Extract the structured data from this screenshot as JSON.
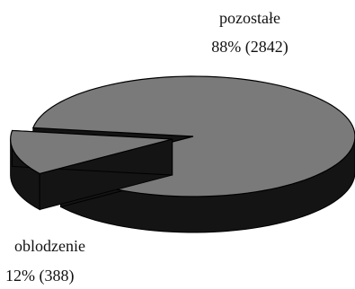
{
  "chart_data": {
    "type": "pie",
    "three_d": true,
    "title": "",
    "slices": [
      {
        "category": "pozostałe",
        "label": "pozostałe",
        "value_text": "88% (2842)",
        "value": 2842,
        "percent": 88,
        "exploded": false
      },
      {
        "category": "oblodzenie",
        "label": "oblodzenie",
        "value_text": "12% (388)",
        "value": 388,
        "percent": 12,
        "exploded": true
      }
    ],
    "colors": {
      "top": "#7a7a7a",
      "side": "#141414",
      "edge": "#000000"
    }
  }
}
